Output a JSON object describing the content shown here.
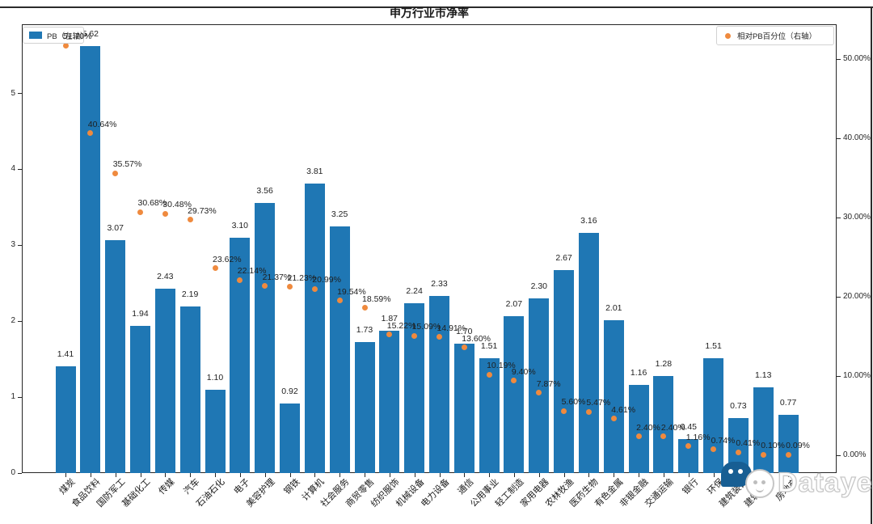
{
  "chart_data": {
    "type": "bar",
    "title": "申万行业市净率",
    "legend": [
      {
        "label": "PB（左轴）",
        "marker": "square",
        "color": "#1f77b4",
        "position": "upper-left"
      },
      {
        "label": "相对PB百分位（右轴）",
        "marker": "dot",
        "color": "#ef8a3e",
        "position": "upper-right"
      }
    ],
    "categories": [
      "煤炭",
      "食品饮料",
      "国防军工",
      "基础化工",
      "传媒",
      "汽车",
      "石油石化",
      "电子",
      "美容护理",
      "钢铁",
      "计算机",
      "社会服务",
      "商贸零售",
      "纺织服饰",
      "机械设备",
      "电力设备",
      "通信",
      "公用事业",
      "轻工制造",
      "家用电器",
      "农林牧渔",
      "医药生物",
      "有色金属",
      "非银金融",
      "交通运输",
      "银行",
      "环保",
      "建筑装饰",
      "建筑材料",
      "房地产"
    ],
    "series": [
      {
        "name": "PB（左轴）",
        "type": "bar",
        "axis": "left",
        "color": "#1f77b4",
        "values": [
          1.41,
          5.62,
          3.07,
          1.94,
          2.43,
          2.19,
          1.1,
          3.1,
          3.56,
          0.92,
          3.81,
          3.25,
          1.73,
          1.87,
          2.24,
          2.33,
          1.7,
          1.51,
          2.07,
          2.3,
          2.67,
          3.16,
          2.01,
          1.16,
          1.28,
          0.45,
          1.51,
          0.73,
          1.13,
          0.77
        ]
      },
      {
        "name": "相对PB百分位（右轴）",
        "type": "scatter",
        "axis": "right",
        "color": "#ef8a3e",
        "values": [
          51.7,
          40.64,
          35.57,
          30.68,
          30.48,
          29.73,
          23.62,
          22.14,
          21.37,
          21.23,
          20.99,
          19.54,
          18.59,
          15.22,
          15.09,
          14.91,
          13.6,
          10.19,
          9.4,
          7.87,
          5.6,
          5.47,
          4.61,
          2.4,
          2.4,
          1.16,
          0.74,
          0.41,
          0.1,
          0.09
        ]
      }
    ],
    "left_axis": {
      "ticks": [
        0,
        1,
        2,
        3,
        4,
        5
      ],
      "min": 0,
      "max": 5.91
    },
    "right_axis": {
      "tick_values": [
        0,
        10,
        20,
        30,
        40,
        50
      ],
      "tick_labels": [
        "0.00%",
        "10.00%",
        "20.00%",
        "30.00%",
        "40.00%",
        "50.00%"
      ]
    },
    "grid": false,
    "bar_label_format": "0.00",
    "pct_label_format": "0.00%"
  },
  "watermark": {
    "text": "Datayes"
  }
}
